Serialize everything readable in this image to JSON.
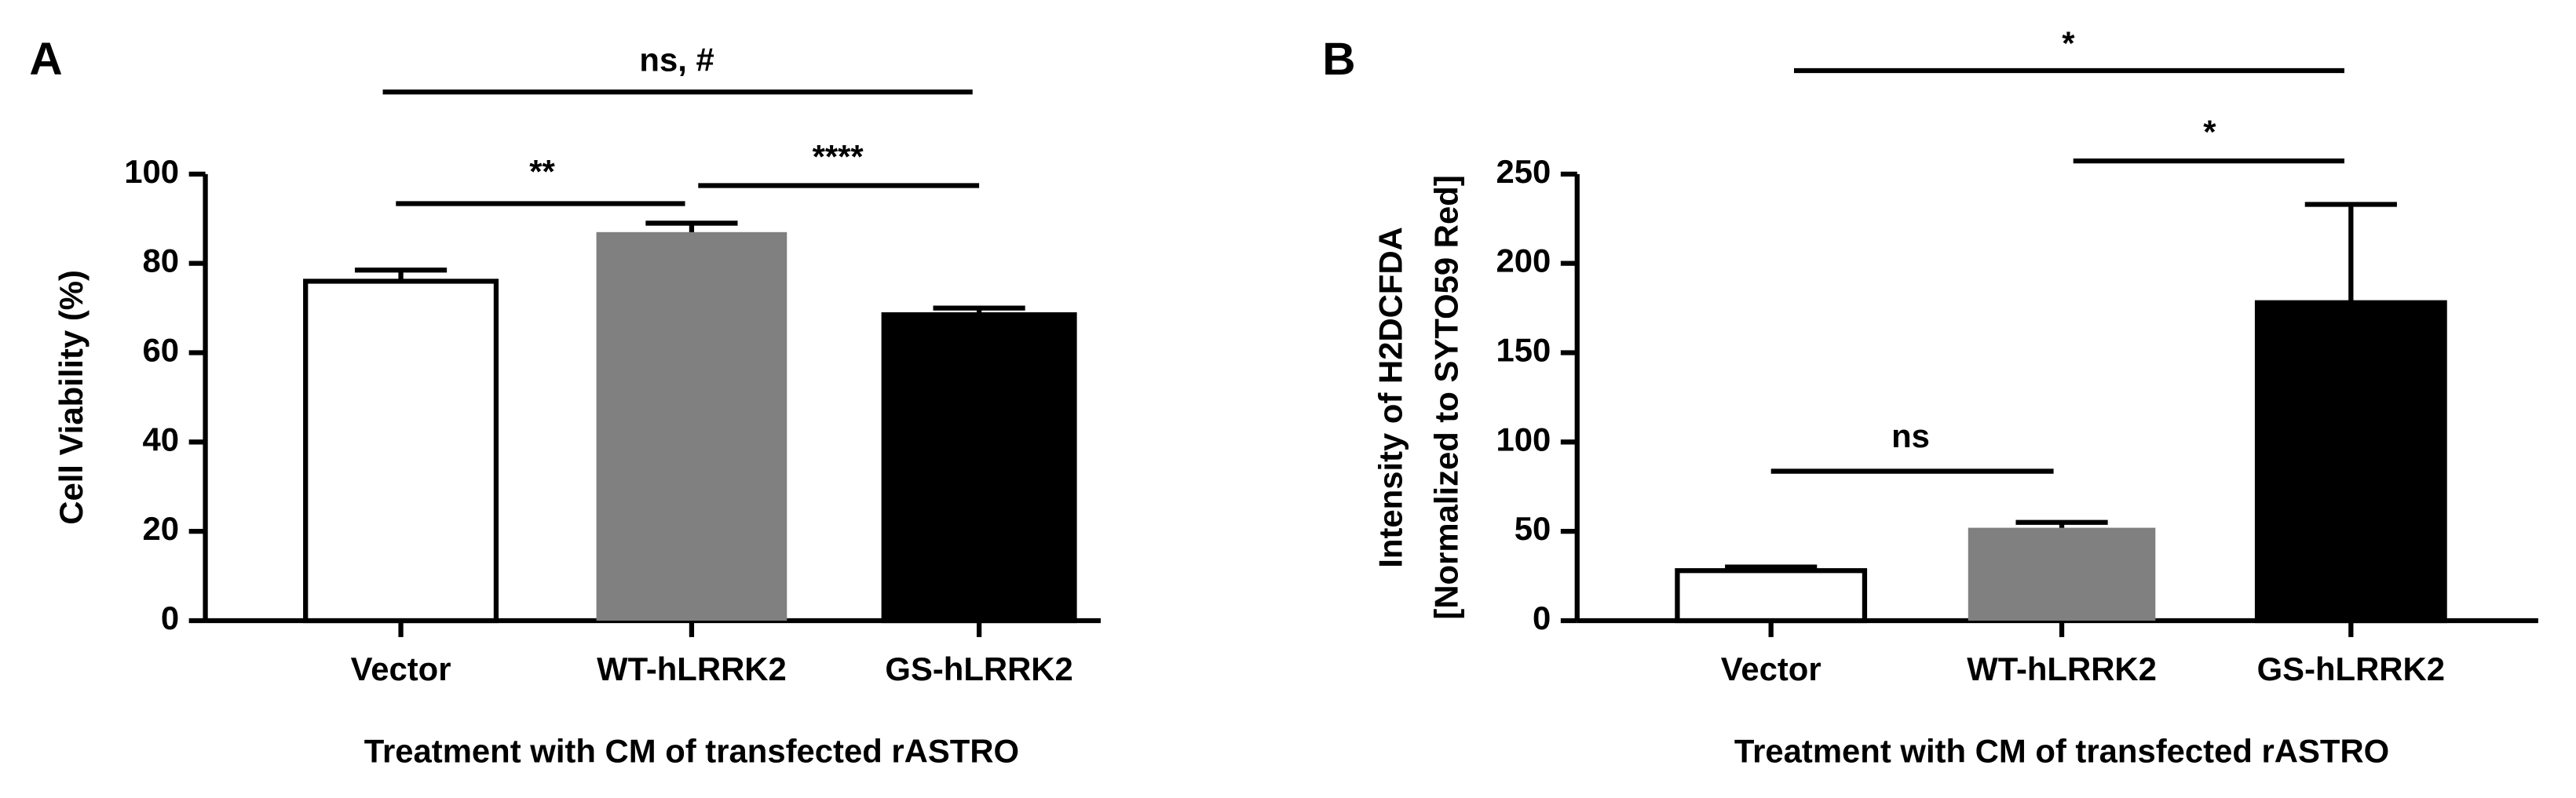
{
  "chart_data": [
    {
      "type": "bar",
      "panel_label": "A",
      "y_label": [
        "Cell Viability  (%)"
      ],
      "x_label": "Treatment with CM of transfected rASTRO",
      "categories": [
        "Vector",
        "WT-hLRRK2",
        "GS-hLRRK2"
      ],
      "values": [
        76,
        87,
        68.5
      ],
      "errors": [
        2.5,
        2,
        1.5
      ],
      "colors": [
        "#ffffff",
        "#808080",
        "#000000"
      ],
      "ylim": [
        0,
        100
      ],
      "yticks": [
        0,
        20,
        40,
        60,
        80,
        100
      ],
      "annotations": [
        "ns, #",
        "**",
        "****"
      ]
    },
    {
      "type": "bar",
      "panel_label": "B",
      "y_label": [
        "Intensity of H2DCFDA",
        "[Normalized to SYTO59 Red]"
      ],
      "x_label": "Treatment with CM of transfected rASTRO",
      "categories": [
        "Vector",
        "WT-hLRRK2",
        "GS-hLRRK2"
      ],
      "values": [
        28,
        52,
        178
      ],
      "errors": [
        2,
        3,
        55
      ],
      "colors": [
        "#ffffff",
        "#808080",
        "#000000"
      ],
      "ylim": [
        0,
        250
      ],
      "yticks": [
        0,
        50,
        100,
        150,
        200,
        250
      ],
      "annotations": [
        "*",
        "*",
        "ns"
      ]
    }
  ]
}
